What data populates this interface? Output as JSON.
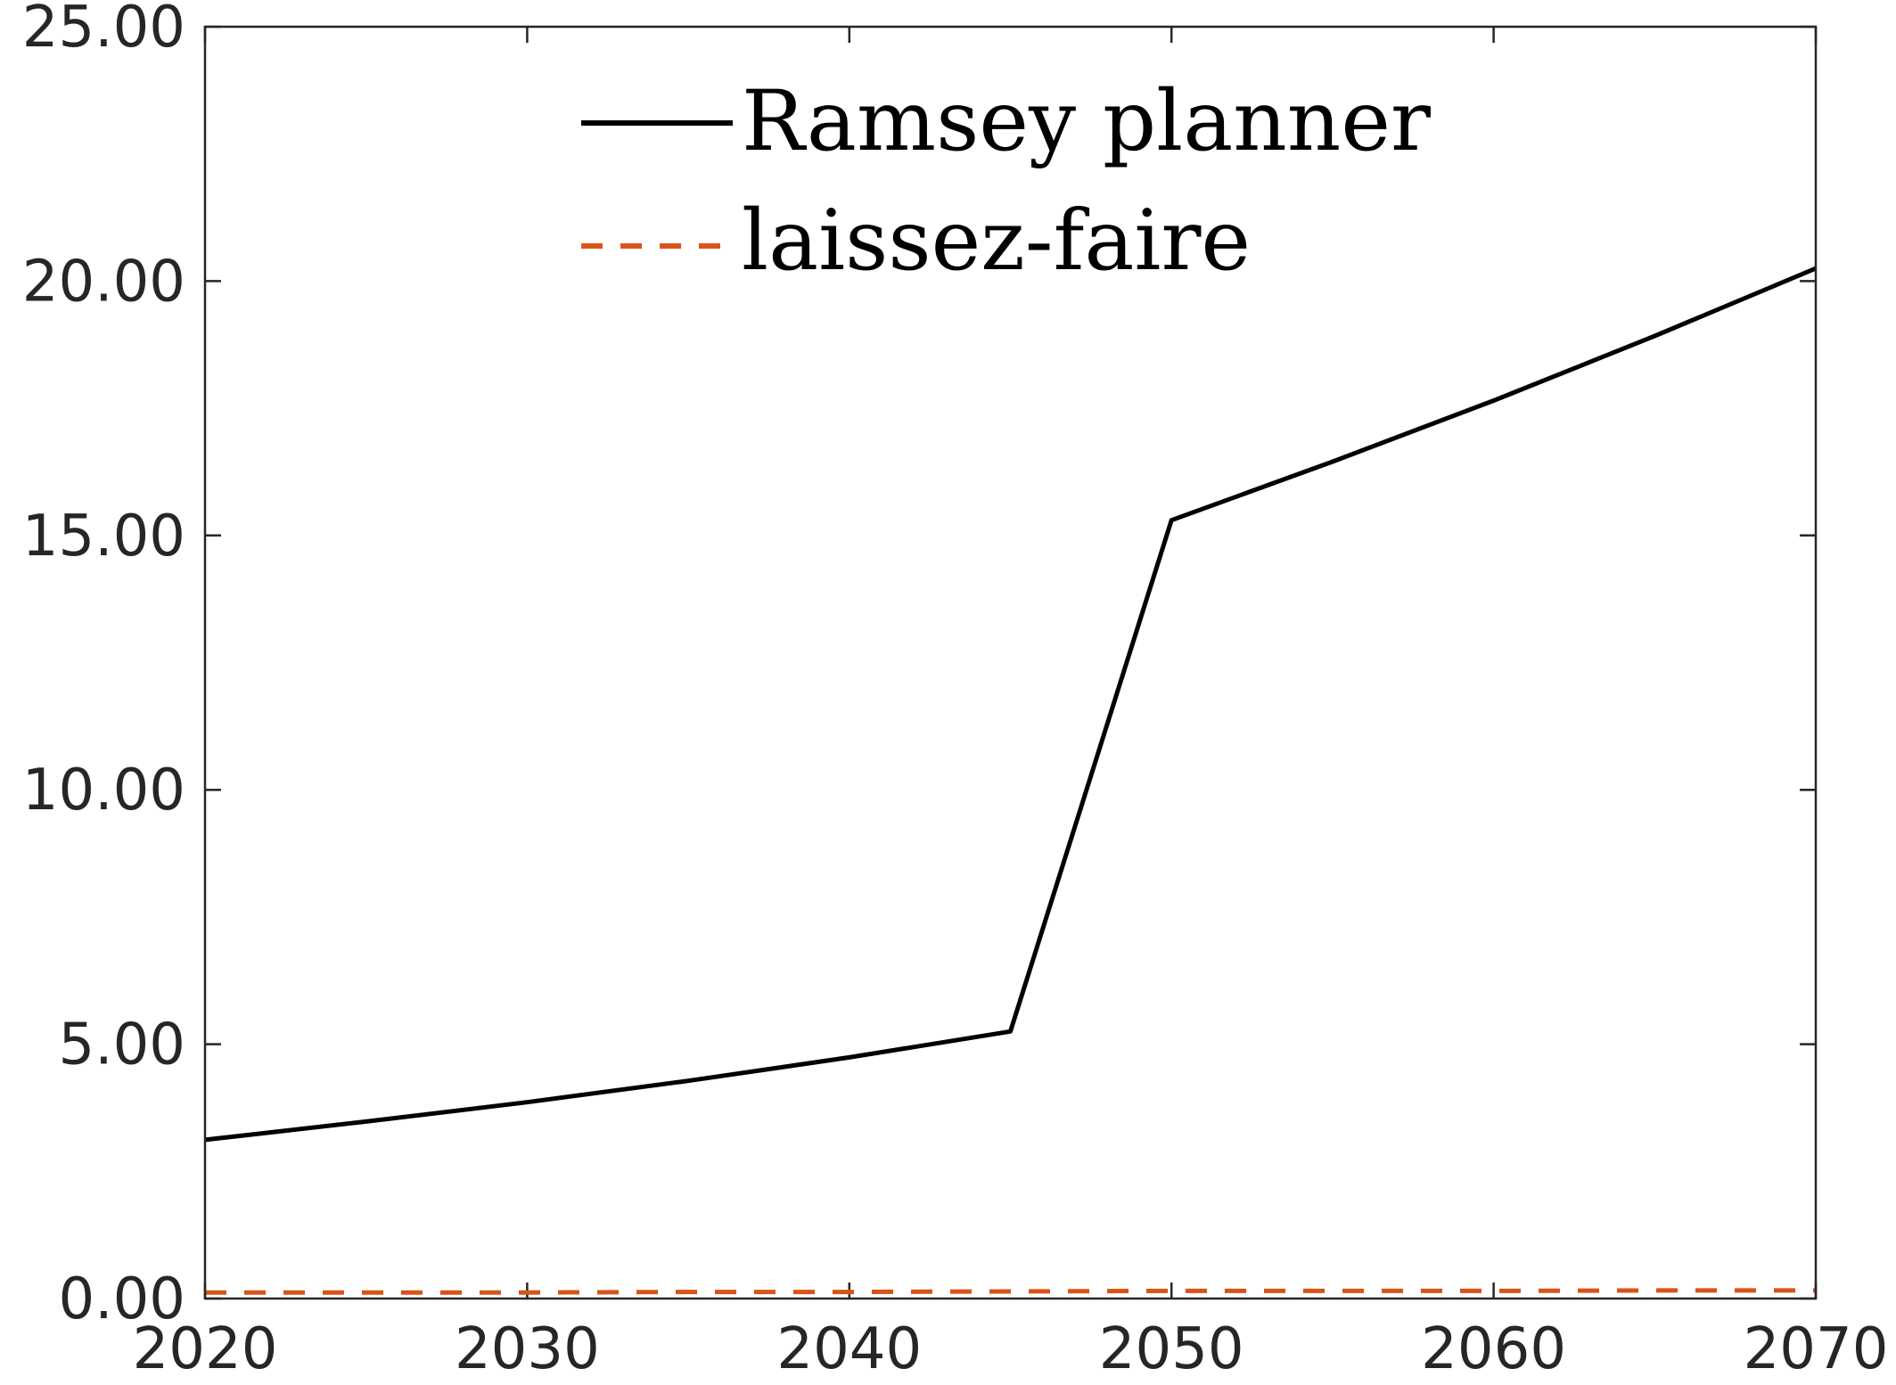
{
  "chart_data": {
    "type": "line",
    "title": "",
    "xlabel": "",
    "ylabel": "",
    "xlim": [
      2020,
      2070
    ],
    "ylim": [
      0,
      25
    ],
    "grid": false,
    "legend_position": "top-center",
    "x_ticks": [
      "2020",
      "2030",
      "2040",
      "2050",
      "2060",
      "2070"
    ],
    "y_ticks": [
      "0.00",
      "5.00",
      "10.00",
      "15.00",
      "20.00",
      "25.00"
    ],
    "x_tick_values": [
      2020,
      2030,
      2040,
      2050,
      2060,
      2070
    ],
    "y_tick_values": [
      0,
      5,
      10,
      15,
      20,
      25
    ],
    "series": [
      {
        "name": "Ramsey planner",
        "color": "#000000",
        "style": "solid",
        "x": [
          2020,
          2025,
          2030,
          2035,
          2040,
          2045,
          2050,
          2055,
          2060,
          2065,
          2070
        ],
        "y": [
          3.12,
          3.48,
          3.86,
          4.28,
          4.74,
          5.25,
          15.3,
          16.45,
          17.65,
          18.92,
          20.25
        ]
      },
      {
        "name": "laissez-faire",
        "color": "#D95319",
        "style": "dashed",
        "x": [
          2020,
          2025,
          2030,
          2035,
          2040,
          2045,
          2050,
          2055,
          2060,
          2065,
          2070
        ],
        "y": [
          0.12,
          0.12,
          0.12,
          0.13,
          0.13,
          0.14,
          0.15,
          0.15,
          0.15,
          0.16,
          0.16
        ]
      }
    ]
  }
}
